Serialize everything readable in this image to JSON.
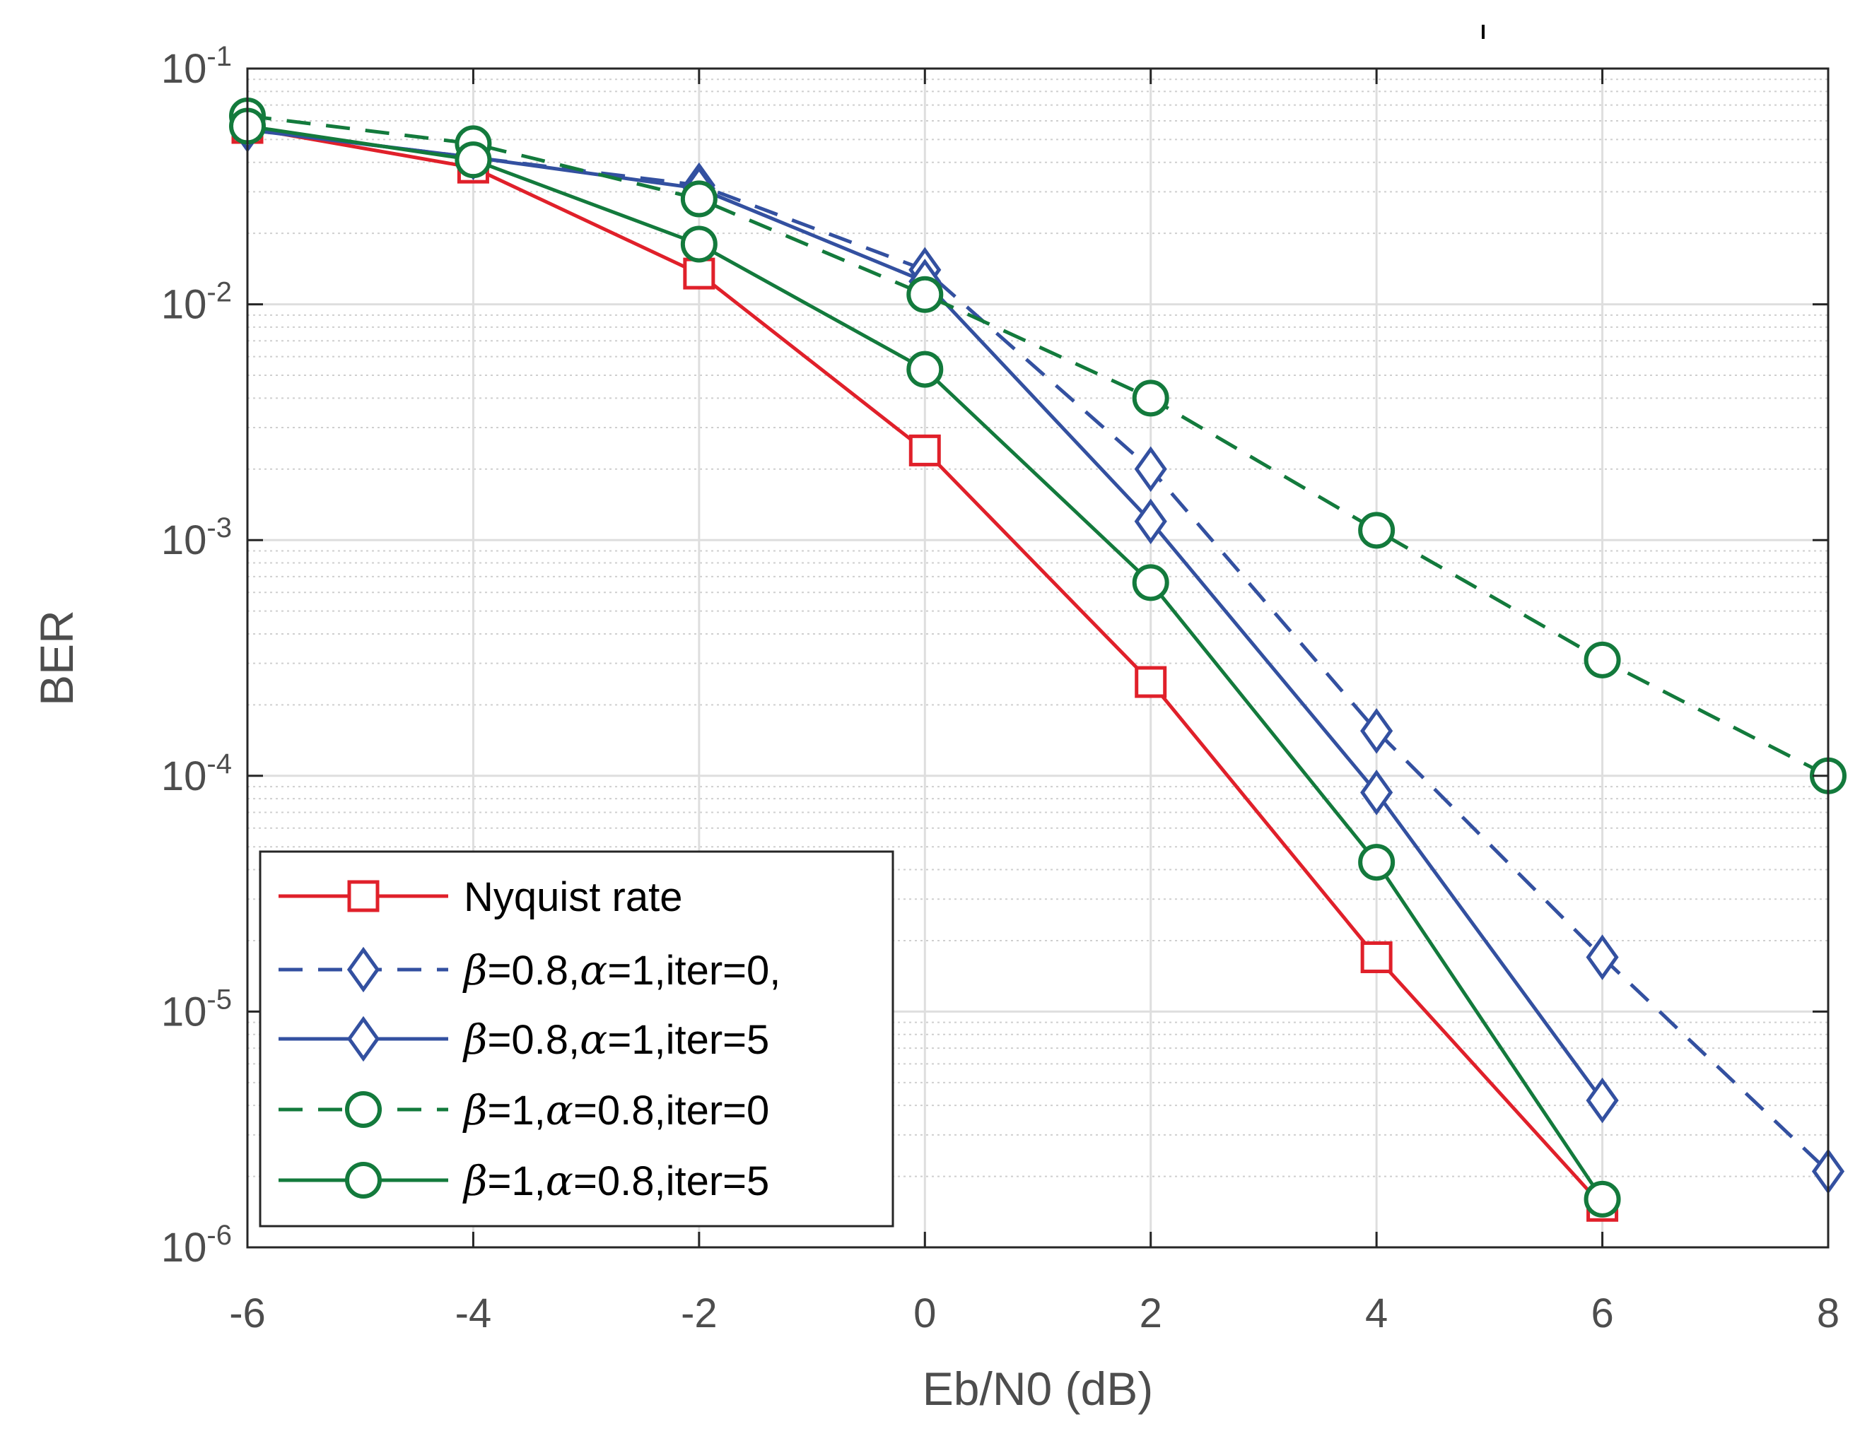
{
  "chart_data": {
    "type": "line",
    "title": "",
    "xlabel": "Eb/N0 (dB)",
    "ylabel": "BER",
    "xlim": [
      -6,
      8
    ],
    "ylim_log10": [
      -6,
      -1
    ],
    "yscale": "log",
    "grid": true,
    "legend_position": "bottom-left",
    "x_ticks": [
      "-6",
      "-4",
      "-2",
      "0",
      "2",
      "4",
      "6",
      "8"
    ],
    "y_ticks": [
      {
        "base": "10",
        "exp": "-1"
      },
      {
        "base": "10",
        "exp": "-2"
      },
      {
        "base": "10",
        "exp": "-3"
      },
      {
        "base": "10",
        "exp": "-4"
      },
      {
        "base": "10",
        "exp": "-5"
      },
      {
        "base": "10",
        "exp": "-6"
      }
    ],
    "series": [
      {
        "name": "Nyquist rate",
        "color": "#e0202a",
        "dash": "solid",
        "marker": "square",
        "label_parts": [
          {
            "t": "Nyquist rate",
            "i": false
          }
        ],
        "x": [
          -6,
          -4,
          -2,
          0,
          2,
          4,
          6
        ],
        "y": [
          0.056,
          0.038,
          0.0135,
          0.0024,
          0.00025,
          1.7e-05,
          1.5e-06
        ]
      },
      {
        "name": "β=0.8,α=1,iter=0,",
        "color": "#3350a0",
        "dash": "dashed",
        "marker": "diamond",
        "label_parts": [
          {
            "t": "β",
            "i": true
          },
          {
            "t": "=0.8,",
            "i": false
          },
          {
            "t": "α",
            "i": true
          },
          {
            "t": "=1,iter=0,",
            "i": false
          }
        ],
        "x": [
          -6,
          -4,
          -2,
          0,
          2,
          4,
          6,
          8
        ],
        "y": [
          0.055,
          0.042,
          0.032,
          0.014,
          0.002,
          0.000155,
          1.7e-05,
          2.1e-06
        ]
      },
      {
        "name": "β=0.8,α=1,iter=5",
        "color": "#3350a0",
        "dash": "solid",
        "marker": "diamond",
        "label_parts": [
          {
            "t": "β",
            "i": true
          },
          {
            "t": "=0.8,",
            "i": false
          },
          {
            "t": "α",
            "i": true
          },
          {
            "t": "=1,iter=5",
            "i": false
          }
        ],
        "x": [
          -6,
          -4,
          -2,
          0,
          2,
          4,
          6
        ],
        "y": [
          0.055,
          0.042,
          0.031,
          0.0125,
          0.0012,
          8.5e-05,
          4.2e-06
        ]
      },
      {
        "name": "β=1,α=0.8,iter=0",
        "color": "#137a3c",
        "dash": "dashed",
        "marker": "circle",
        "label_parts": [
          {
            "t": "β",
            "i": true
          },
          {
            "t": "=1,",
            "i": false
          },
          {
            "t": "α",
            "i": true
          },
          {
            "t": "=0.8,iter=0",
            "i": false
          }
        ],
        "x": [
          -6,
          -4,
          -2,
          0,
          2,
          4,
          6,
          8
        ],
        "y": [
          0.063,
          0.048,
          0.028,
          0.011,
          0.004,
          0.0011,
          0.00031,
          0.0001
        ]
      },
      {
        "name": "β=1,α=0.8,iter=5",
        "color": "#137a3c",
        "dash": "solid",
        "marker": "circle",
        "label_parts": [
          {
            "t": "β",
            "i": true
          },
          {
            "t": "=1,",
            "i": false
          },
          {
            "t": "α",
            "i": true
          },
          {
            "t": "=0.8,iter=5",
            "i": false
          }
        ],
        "x": [
          -6,
          -4,
          -2,
          0,
          2,
          4,
          6
        ],
        "y": [
          0.057,
          0.041,
          0.018,
          0.0053,
          0.00066,
          4.3e-05,
          1.6e-06
        ]
      }
    ]
  }
}
